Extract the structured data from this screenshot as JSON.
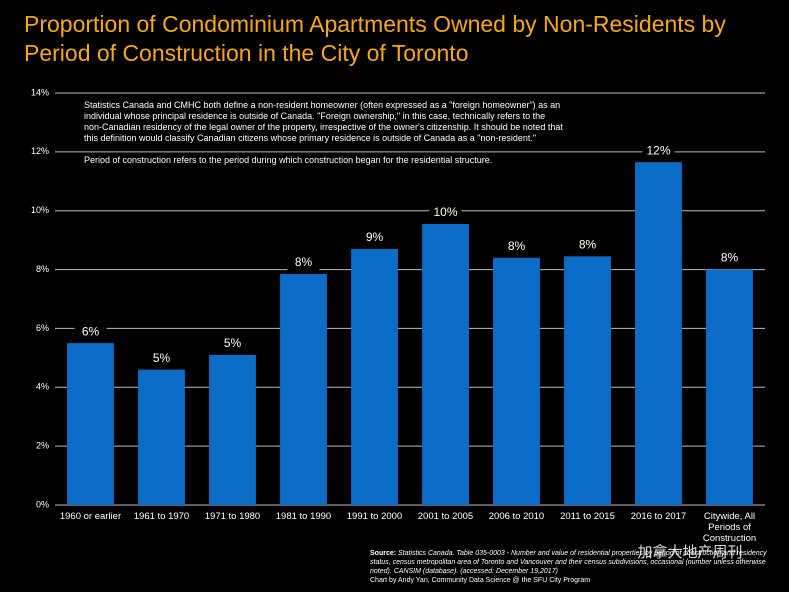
{
  "chart_data": {
    "type": "bar",
    "title": "Proportion of Condominium Apartments Owned by Non-Residents by Period of Construction in the City of Toronto",
    "categories": [
      "1960 or earlier",
      "1961 to 1970",
      "1971 to 1980",
      "1981 to 1990",
      "1991 to 2000",
      "2001 to 2005",
      "2006 to 2010",
      "2011 to 2015",
      "2016 to 2017",
      "Citywide, All Periods of Construction"
    ],
    "values": [
      5.5,
      4.6,
      5.1,
      7.85,
      8.7,
      9.55,
      8.4,
      8.45,
      11.65,
      8.0
    ],
    "value_labels": [
      "6%",
      "5%",
      "5%",
      "8%",
      "9%",
      "10%",
      "8%",
      "8%",
      "12%",
      "8%"
    ],
    "color": "#0a6cc4",
    "ylim": [
      0,
      14
    ],
    "yticks": [
      {
        "value": 0,
        "label": "0%"
      },
      {
        "value": 2,
        "label": "2%"
      },
      {
        "value": 4,
        "label": "4%"
      },
      {
        "value": 6,
        "label": "6%"
      },
      {
        "value": 8,
        "label": "8%"
      },
      {
        "value": 10,
        "label": "10%"
      },
      {
        "value": 12,
        "label": "12%"
      },
      {
        "value": 14,
        "label": "14%"
      }
    ],
    "grid": true,
    "notes": [
      "Statistics Canada and CMHC both define a non-resident homeowner (often expressed as a \"foreign homeowner\") as an individual whose principal residence is outside of Canada. \"Foreign ownership,\" in this case, technically refers to the non-Canadian residency of the legal owner of the property, irrespective of the owner's citizenship. It should be noted that this definition would classify Canadian citizens whose primary residence is outside of Canada as a \"non-resident.\"",
      "Period of construction refers to the period during which construction began for the residential structure."
    ],
    "source": {
      "label": "Source:",
      "text": "Statistics Canada. Table 035-0003 - Number and value of residential properties by period of construction and residency status, census metropolitan area of Toronto and Vancouver and their census subdivisions, occasional (number unless otherwise noted). CANSIM (database). (accessed: December 19,2017)",
      "credit": "Chart by Andy Yan, Community Data Science @ the SFU City Program"
    },
    "watermark": "加拿大地产周刊"
  }
}
